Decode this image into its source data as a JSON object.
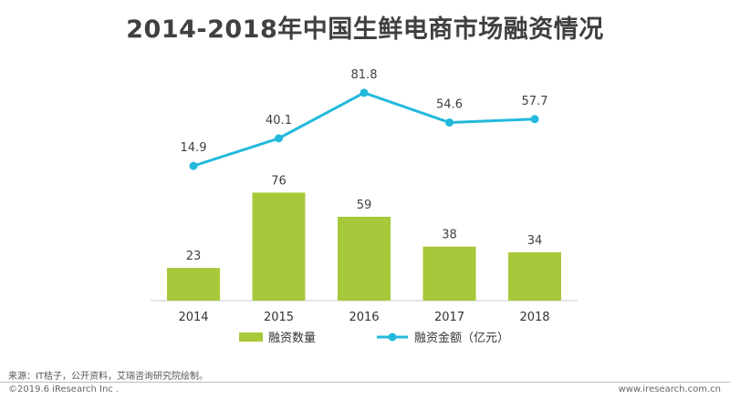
{
  "title": "2014-2018年中国生鲜电商市场融资情况",
  "source": "来源：IT桔子，公开资料，艾瑞咨询研究院绘制。",
  "copyright": "©2019.6 iResearch Inc .",
  "website": "www.iresearch.com.cn",
  "chart_data": {
    "type": "bar+line",
    "categories": [
      "2014",
      "2015",
      "2016",
      "2017",
      "2018"
    ],
    "series": [
      {
        "name": "融资数量",
        "type": "bar",
        "color": "#a7c83a",
        "values": [
          23,
          76,
          59,
          38,
          34
        ]
      },
      {
        "name": "融资金额（亿元）",
        "type": "line",
        "color": "#22b9dc",
        "values": [
          14.9,
          40.1,
          81.8,
          54.6,
          57.7
        ]
      }
    ],
    "legend_position": "bottom"
  }
}
